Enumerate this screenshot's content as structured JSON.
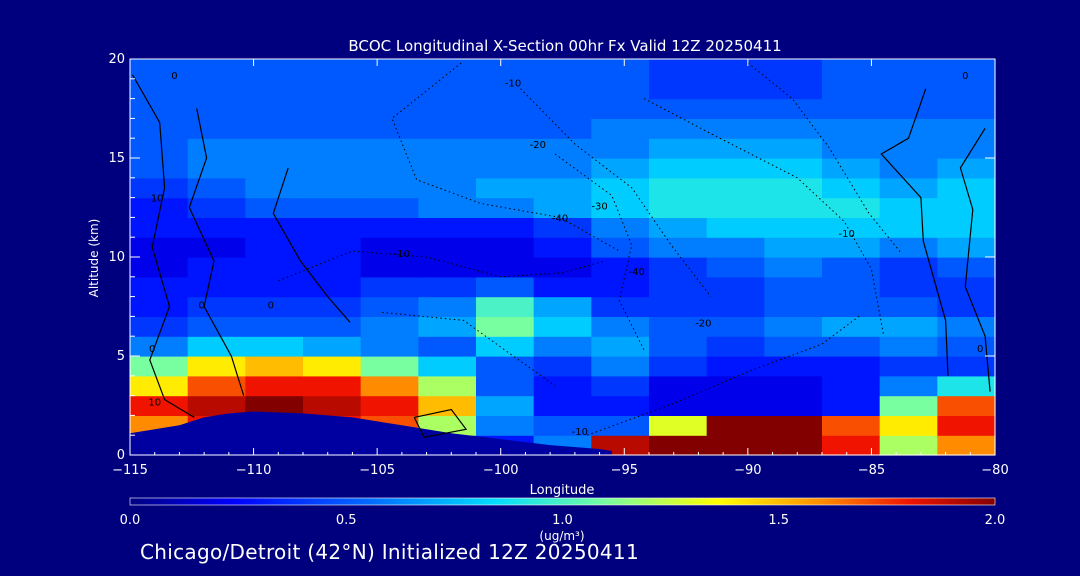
{
  "chart_data": {
    "type": "heatmap",
    "title": "BCOC Longitudinal X-Section 00hr  Fx Valid 12Z 20250411",
    "xlabel": "Longitude",
    "ylabel": "Altitude (km)",
    "xlim": [
      -115,
      -80
    ],
    "ylim": [
      0,
      20
    ],
    "x_ticks": [
      "−115",
      "−110",
      "−105",
      "−100",
      "−95",
      "−90",
      "−85",
      "−80"
    ],
    "x_tick_values": [
      -115,
      -110,
      -105,
      -100,
      -95,
      -90,
      -85,
      -80
    ],
    "y_ticks": [
      "0",
      "5",
      "10",
      "15",
      "20"
    ],
    "y_tick_values": [
      0,
      5,
      10,
      15,
      20
    ],
    "colorbar": {
      "min": 0.0,
      "max": 2.0,
      "ticks": [
        "0.0",
        "0.5",
        "1.0",
        "1.5",
        "2.0"
      ],
      "tick_values": [
        0,
        0.5,
        1.0,
        1.5,
        2.0
      ],
      "unit_label": "(ug/m³)",
      "colormap": "rainbow (blue-cyan-yellow-red)"
    },
    "bcoc_concentration": {
      "x": [
        -115,
        -112.5,
        -110,
        -107.5,
        -105,
        -102.5,
        -100,
        -97.5,
        -95,
        -92.5,
        -90,
        -87.5,
        -85,
        -82.5,
        -80
      ],
      "y": [
        0.5,
        1.5,
        2.5,
        3.5,
        4.5,
        5.5,
        6.5,
        7.5,
        8.5,
        9.5,
        10.5,
        11.5,
        12.5,
        13.5,
        14.5,
        15.5,
        16.5,
        17.5,
        18.5,
        19.5
      ],
      "values": [
        [
          0.2,
          0.2,
          0.2,
          0.2,
          0.2,
          0.2,
          0.3,
          0.6,
          1.9,
          2.0,
          2.0,
          2.0,
          1.8,
          1.2,
          1.6
        ],
        [
          1.6,
          1.8,
          1.8,
          1.8,
          1.7,
          1.2,
          0.6,
          0.5,
          0.5,
          1.3,
          2.0,
          2.0,
          1.7,
          1.4,
          1.8
        ],
        [
          1.8,
          1.9,
          2.0,
          1.9,
          1.8,
          1.5,
          0.7,
          0.3,
          0.3,
          0.2,
          0.2,
          0.2,
          0.3,
          1.1,
          1.7
        ],
        [
          1.4,
          1.7,
          1.8,
          1.8,
          1.6,
          1.2,
          0.5,
          0.3,
          0.4,
          0.2,
          0.2,
          0.2,
          0.3,
          0.6,
          0.9
        ],
        [
          1.1,
          1.4,
          1.5,
          1.4,
          1.1,
          0.8,
          0.5,
          0.4,
          0.6,
          0.4,
          0.3,
          0.3,
          0.3,
          0.4,
          0.4
        ],
        [
          0.6,
          0.8,
          0.8,
          0.7,
          0.6,
          0.5,
          0.8,
          0.6,
          0.7,
          0.5,
          0.4,
          0.5,
          0.5,
          0.6,
          0.5
        ],
        [
          0.4,
          0.5,
          0.5,
          0.5,
          0.6,
          0.7,
          1.1,
          0.8,
          0.6,
          0.5,
          0.5,
          0.6,
          0.7,
          0.7,
          0.6
        ],
        [
          0.3,
          0.4,
          0.4,
          0.4,
          0.5,
          0.6,
          1.0,
          0.7,
          0.4,
          0.4,
          0.4,
          0.5,
          0.5,
          0.5,
          0.4
        ],
        [
          0.3,
          0.3,
          0.3,
          0.3,
          0.4,
          0.4,
          0.5,
          0.3,
          0.3,
          0.4,
          0.4,
          0.5,
          0.5,
          0.4,
          0.4
        ],
        [
          0.2,
          0.3,
          0.3,
          0.3,
          0.2,
          0.2,
          0.2,
          0.2,
          0.3,
          0.4,
          0.5,
          0.6,
          0.5,
          0.4,
          0.5
        ],
        [
          0.2,
          0.2,
          0.3,
          0.3,
          0.2,
          0.2,
          0.2,
          0.3,
          0.5,
          0.6,
          0.6,
          0.7,
          0.7,
          0.6,
          0.7
        ],
        [
          0.3,
          0.3,
          0.3,
          0.3,
          0.3,
          0.3,
          0.3,
          0.4,
          0.6,
          0.7,
          0.8,
          0.8,
          0.8,
          0.8,
          0.8
        ],
        [
          0.3,
          0.4,
          0.5,
          0.5,
          0.5,
          0.6,
          0.6,
          0.7,
          0.8,
          0.9,
          0.9,
          0.9,
          0.9,
          0.8,
          0.8
        ],
        [
          0.4,
          0.5,
          0.6,
          0.6,
          0.6,
          0.6,
          0.7,
          0.7,
          0.8,
          0.9,
          0.9,
          0.9,
          0.8,
          0.7,
          0.8
        ],
        [
          0.5,
          0.6,
          0.6,
          0.6,
          0.6,
          0.6,
          0.6,
          0.6,
          0.7,
          0.8,
          0.8,
          0.8,
          0.7,
          0.6,
          0.7
        ],
        [
          0.5,
          0.6,
          0.6,
          0.6,
          0.6,
          0.6,
          0.6,
          0.6,
          0.6,
          0.7,
          0.7,
          0.7,
          0.6,
          0.6,
          0.6
        ],
        [
          0.5,
          0.5,
          0.5,
          0.5,
          0.5,
          0.5,
          0.5,
          0.5,
          0.6,
          0.6,
          0.6,
          0.6,
          0.6,
          0.6,
          0.6
        ],
        [
          0.5,
          0.5,
          0.5,
          0.5,
          0.5,
          0.5,
          0.5,
          0.5,
          0.5,
          0.5,
          0.5,
          0.5,
          0.5,
          0.5,
          0.5
        ],
        [
          0.5,
          0.5,
          0.5,
          0.5,
          0.5,
          0.5,
          0.5,
          0.5,
          0.5,
          0.4,
          0.4,
          0.4,
          0.5,
          0.5,
          0.5
        ],
        [
          0.5,
          0.5,
          0.5,
          0.5,
          0.5,
          0.5,
          0.5,
          0.5,
          0.5,
          0.4,
          0.4,
          0.4,
          0.5,
          0.5,
          0.5
        ]
      ]
    },
    "temperature_contour_labels": [
      "0",
      "0",
      "-10",
      "-20",
      "-30",
      "-40",
      "-10",
      "-40",
      "-10",
      "-20",
      "0",
      "-10",
      "10",
      "0",
      "10",
      "0",
      "0"
    ],
    "terrain": {
      "x": [
        -115,
        -113,
        -112,
        -111,
        -110,
        -108,
        -106,
        -104,
        -102,
        -100,
        -98,
        -96,
        -95.5
      ],
      "y": [
        1.1,
        1.5,
        1.9,
        2.1,
        2.2,
        2.1,
        1.9,
        1.5,
        1.1,
        0.8,
        0.5,
        0.3,
        0.2
      ]
    }
  },
  "footer": {
    "text": "Chicago/Detroit (42°N) Initialized 12Z 20250411"
  }
}
